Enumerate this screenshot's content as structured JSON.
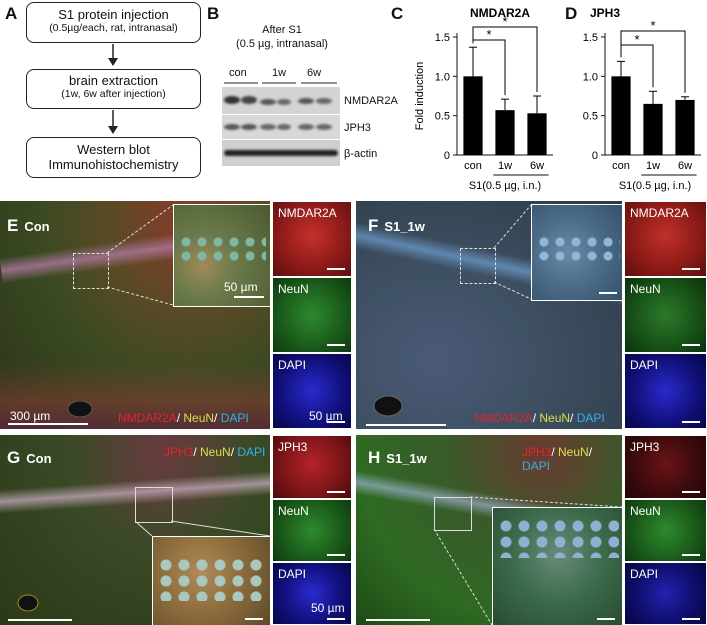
{
  "panels": {
    "A": "A",
    "B": "B",
    "C": "C",
    "D": "D",
    "E": "E",
    "F": "F",
    "G": "G",
    "H": "H"
  },
  "flow": {
    "box1_title": "S1 protein injection",
    "box1_sub": "(0.5µg/each, rat, intranasal)",
    "box2_title": "brain extraction",
    "box2_sub": "(1w, 6w  after injection)",
    "box3_line1": "Western blot",
    "box3_line2": "Immunohistochemistry"
  },
  "blot": {
    "header1": "After S1",
    "header2": "(0.5 µg, intranasal)",
    "lanes": [
      "con",
      "1w",
      "6w"
    ],
    "bands": [
      "NMDAR2A",
      "JPH3",
      "β-actin"
    ]
  },
  "chart_data": [
    {
      "type": "bar",
      "title": "NMDAR2A",
      "ylabel": "Fold induction",
      "categories": [
        "con",
        "1w",
        "6w"
      ],
      "values": [
        1.0,
        0.57,
        0.53
      ],
      "errors": [
        0.37,
        0.14,
        0.22
      ],
      "ylim": [
        0,
        1.5
      ],
      "yticks": [
        "0",
        "0.5",
        "1.0",
        "1.5"
      ],
      "treatment_label": "S1(0.5 µg, i.n.)",
      "significance": [
        "*",
        "*"
      ]
    },
    {
      "type": "bar",
      "title": "JPH3",
      "ylabel": "",
      "categories": [
        "con",
        "1w",
        "6w"
      ],
      "values": [
        1.0,
        0.65,
        0.7
      ],
      "errors": [
        0.19,
        0.16,
        0.04
      ],
      "ylim": [
        0,
        1.5
      ],
      "yticks": [
        "0",
        "0.5",
        "1.0",
        "1.5"
      ],
      "treatment_label": "S1(0.5 µg, i.n.)",
      "significance": [
        "*",
        "*"
      ]
    }
  ],
  "micro": {
    "E": {
      "title": "Con",
      "scale_main": "300 µm",
      "scale_inset": "50 µm",
      "scale_tile": "50 µm",
      "tiles": [
        "NMDAR2A",
        "NeuN",
        "DAPI"
      ]
    },
    "F": {
      "title": "S1_1w",
      "tiles": [
        "NMDAR2A",
        "NeuN",
        "DAPI"
      ]
    },
    "G": {
      "title": "Con",
      "scale_tile": "50 µm",
      "tiles": [
        "JPH3",
        "NeuN",
        "DAPI"
      ]
    },
    "H": {
      "title": "S1_1w",
      "tiles": [
        "JPH3",
        "NeuN",
        "DAPI"
      ]
    },
    "legend_top": {
      "first": "NMDAR2A",
      "second": "NeuN",
      "third": "DAPI"
    },
    "legend_bottom": {
      "first": "JPH3",
      "second": "NeuN",
      "third": "DAPI"
    },
    "sep": "/ ",
    "colors": {
      "red": "#e0262a",
      "green": "#d8e04a",
      "blue": "#2fb4e8"
    }
  }
}
